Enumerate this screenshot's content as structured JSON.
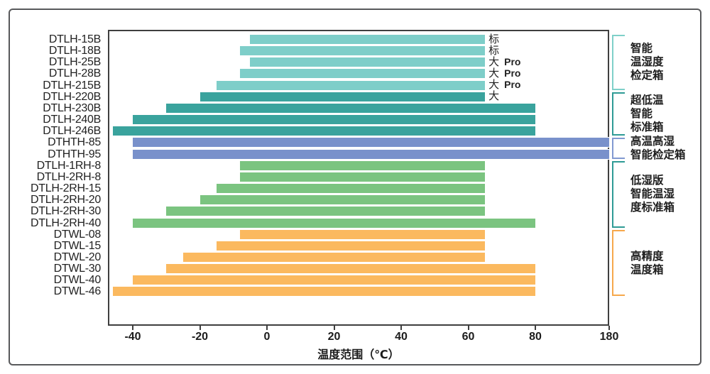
{
  "chart_data": {
    "type": "bar",
    "orientation": "horizontal",
    "title": "",
    "xlabel": "温度范围（℃）",
    "ylabel": "",
    "x_ticks": [
      -40,
      -20,
      0,
      20,
      40,
      60,
      80,
      180
    ],
    "x_tick_labels": [
      "-40",
      "-20",
      "0",
      "20",
      "40",
      "60",
      "80",
      "180"
    ],
    "axis_note": "axis segment 80 to 180 is compressed (non-linear break)",
    "grid": false,
    "rows": [
      {
        "model": "DTLH-15B",
        "low": -5,
        "high": 65,
        "group": 0,
        "tag": "标",
        "tag_bold": ""
      },
      {
        "model": "DTLH-18B",
        "low": -8,
        "high": 65,
        "group": 0,
        "tag": "标",
        "tag_bold": ""
      },
      {
        "model": "DTLH-25B",
        "low": -5,
        "high": 65,
        "group": 0,
        "tag": "大",
        "tag_bold": "Pro"
      },
      {
        "model": "DTLH-28B",
        "low": -8,
        "high": 65,
        "group": 0,
        "tag": "大",
        "tag_bold": "Pro"
      },
      {
        "model": "DTLH-215B",
        "low": -15,
        "high": 65,
        "group": 0,
        "tag": "大",
        "tag_bold": "Pro"
      },
      {
        "model": "DTLH-220B",
        "low": -20,
        "high": 65,
        "group": 1,
        "tag": "大",
        "tag_bold": ""
      },
      {
        "model": "DTLH-230B",
        "low": -30,
        "high": 80,
        "group": 1,
        "tag": "",
        "tag_bold": ""
      },
      {
        "model": "DTLH-240B",
        "low": -40,
        "high": 80,
        "group": 1,
        "tag": "",
        "tag_bold": ""
      },
      {
        "model": "DTLH-246B",
        "low": -46,
        "high": 80,
        "group": 1,
        "tag": "",
        "tag_bold": ""
      },
      {
        "model": "DTHTH-85",
        "low": -40,
        "high": 180,
        "group": 2,
        "tag": "",
        "tag_bold": ""
      },
      {
        "model": "DTHTH-95",
        "low": -40,
        "high": 180,
        "group": 2,
        "tag": "",
        "tag_bold": ""
      },
      {
        "model": "DTLH-1RH-8",
        "low": -8,
        "high": 65,
        "group": 3,
        "tag": "",
        "tag_bold": ""
      },
      {
        "model": "DTLH-2RH-8",
        "low": -8,
        "high": 65,
        "group": 3,
        "tag": "",
        "tag_bold": ""
      },
      {
        "model": "DTLH-2RH-15",
        "low": -15,
        "high": 65,
        "group": 3,
        "tag": "",
        "tag_bold": ""
      },
      {
        "model": "DTLH-2RH-20",
        "low": -20,
        "high": 65,
        "group": 3,
        "tag": "",
        "tag_bold": ""
      },
      {
        "model": "DTLH-2RH-30",
        "low": -30,
        "high": 65,
        "group": 3,
        "tag": "",
        "tag_bold": ""
      },
      {
        "model": "DTLH-2RH-40",
        "low": -40,
        "high": 80,
        "group": 3,
        "tag": "",
        "tag_bold": ""
      },
      {
        "model": "DTWL-08",
        "low": -8,
        "high": 65,
        "group": 4,
        "tag": "",
        "tag_bold": ""
      },
      {
        "model": "DTWL-15",
        "low": -15,
        "high": 65,
        "group": 4,
        "tag": "",
        "tag_bold": ""
      },
      {
        "model": "DTWL-20",
        "low": -25,
        "high": 65,
        "group": 4,
        "tag": "",
        "tag_bold": ""
      },
      {
        "model": "DTWL-30",
        "low": -30,
        "high": 80,
        "group": 4,
        "tag": "",
        "tag_bold": ""
      },
      {
        "model": "DTWL-40",
        "low": -40,
        "high": 80,
        "group": 4,
        "tag": "",
        "tag_bold": ""
      },
      {
        "model": "DTWL-46",
        "low": -46,
        "high": 80,
        "group": 4,
        "tag": "",
        "tag_bold": ""
      }
    ],
    "groups": [
      {
        "name": "智能温湿度检定箱",
        "lines": [
          "智能",
          "温湿度",
          "检定箱"
        ],
        "bar_color": "#7ECEC9",
        "bracket_color": "#7fd0c9",
        "first_row": 0,
        "last_row": 4
      },
      {
        "name": "超低温智能标准箱",
        "lines": [
          "超低温",
          "智能",
          "标准箱"
        ],
        "bar_color": "#3AA39D",
        "bracket_color": "#2e9b95",
        "first_row": 5,
        "last_row": 8
      },
      {
        "name": "高温高湿智能检定箱",
        "lines": [
          "高温高湿",
          "智能检定箱"
        ],
        "bar_color": "#7991CB",
        "bracket_color": "#8199d1",
        "first_row": 9,
        "last_row": 10
      },
      {
        "name": "低湿版智能温湿度标准箱",
        "lines": [
          "低湿版",
          "智能温湿",
          "度标准箱"
        ],
        "bar_color": "#7BC480",
        "bracket_color": "#2e9b95",
        "first_row": 11,
        "last_row": 16
      },
      {
        "name": "高精度温度箱",
        "lines": [
          "高精度",
          "温度箱"
        ],
        "bar_color": "#FBB95F",
        "bracket_color": "#f6a84c",
        "first_row": 17,
        "last_row": 22
      }
    ]
  },
  "frame": {
    "border_color": "#58595b",
    "plot_border_color": "#3f3f3f",
    "background": "#ffffff"
  }
}
